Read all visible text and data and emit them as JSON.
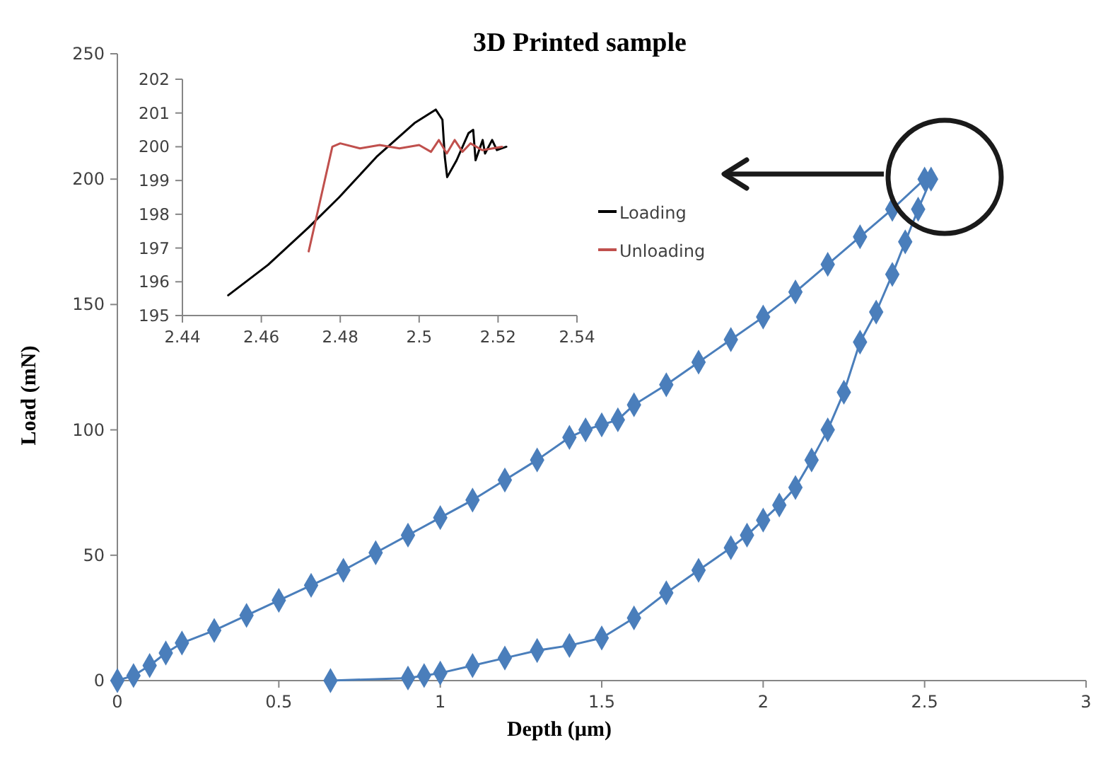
{
  "chart_data": [
    {
      "type": "line",
      "title": "3D Printed sample",
      "xlabel": "Depth (µm)",
      "ylabel": "Load (mN)",
      "xlim": [
        0,
        3
      ],
      "xticks": [
        0,
        0.5,
        1,
        1.5,
        2,
        2.5,
        3
      ],
      "ylim": [
        0,
        250
      ],
      "yticks": [
        0,
        50,
        100,
        150,
        200,
        250
      ],
      "grid": false,
      "legend": false,
      "marker": "diamond",
      "line_style": "solid",
      "series": [
        {
          "color": "#4a7ebb",
          "x": [
            0,
            0.05,
            0.1,
            0.15,
            0.2,
            0.3,
            0.4,
            0.5,
            0.6,
            0.7,
            0.8,
            0.9,
            1.0,
            1.1,
            1.2,
            1.3,
            1.4,
            1.45,
            1.5,
            1.55,
            1.6,
            1.7,
            1.8,
            1.9,
            2.0,
            2.1,
            2.2,
            2.3,
            2.4,
            2.5,
            2.52,
            2.48,
            2.44,
            2.4,
            2.35,
            2.3,
            2.25,
            2.2,
            2.15,
            2.1,
            2.05,
            2.0,
            1.95,
            1.9,
            1.8,
            1.7,
            1.6,
            1.5,
            1.4,
            1.3,
            1.2,
            1.1,
            1.0,
            0.95,
            0.9,
            0.66
          ],
          "values": [
            0,
            2,
            6,
            11,
            15,
            20,
            26,
            32,
            38,
            44,
            51,
            58,
            65,
            72,
            80,
            88,
            97,
            100,
            102,
            104,
            110,
            118,
            127,
            136,
            145,
            155,
            166,
            177,
            188,
            200,
            200,
            188,
            175,
            162,
            147,
            135,
            115,
            100,
            88,
            77,
            70,
            64,
            58,
            53,
            44,
            35,
            25,
            17,
            14,
            12,
            9,
            6,
            3,
            2,
            1,
            0
          ]
        }
      ]
    },
    {
      "type": "line",
      "xlim": [
        2.44,
        2.54
      ],
      "xticks": [
        2.44,
        2.46,
        2.48,
        2.5,
        2.52,
        2.54
      ],
      "ylim": [
        195,
        202
      ],
      "yticks": [
        195,
        196,
        197,
        198,
        199,
        200,
        201,
        202
      ],
      "grid": false,
      "legend": "right",
      "marker": "none",
      "line_style": "solid",
      "series": [
        {
          "name": "Loading",
          "color": "#000000",
          "x": [
            2.4516,
            2.4617,
            2.4719,
            2.4797,
            2.4892,
            2.4988,
            2.5042,
            2.5059,
            2.5065,
            2.5071,
            2.5095,
            2.5125,
            2.5137,
            2.5143,
            2.5161,
            2.5167,
            2.5185,
            2.5197,
            2.5221
          ],
          "values": [
            195.6,
            196.5,
            197.6,
            198.5,
            199.7,
            200.7,
            201.1,
            200.8,
            199.7,
            199.1,
            199.6,
            200.4,
            200.5,
            199.6,
            200.2,
            199.8,
            200.2,
            199.9,
            200.0
          ]
        },
        {
          "name": "Unloading",
          "color": "#c0504d",
          "x": [
            2.472,
            2.478,
            2.48,
            2.485,
            2.49,
            2.495,
            2.5,
            2.503,
            2.505,
            2.507,
            2.509,
            2.511,
            2.513,
            2.516,
            2.521
          ],
          "values": [
            196.9,
            200.0,
            200.1,
            199.95,
            200.05,
            199.95,
            200.05,
            199.85,
            200.2,
            199.8,
            200.2,
            199.85,
            200.1,
            199.9,
            200.0
          ]
        }
      ]
    }
  ]
}
